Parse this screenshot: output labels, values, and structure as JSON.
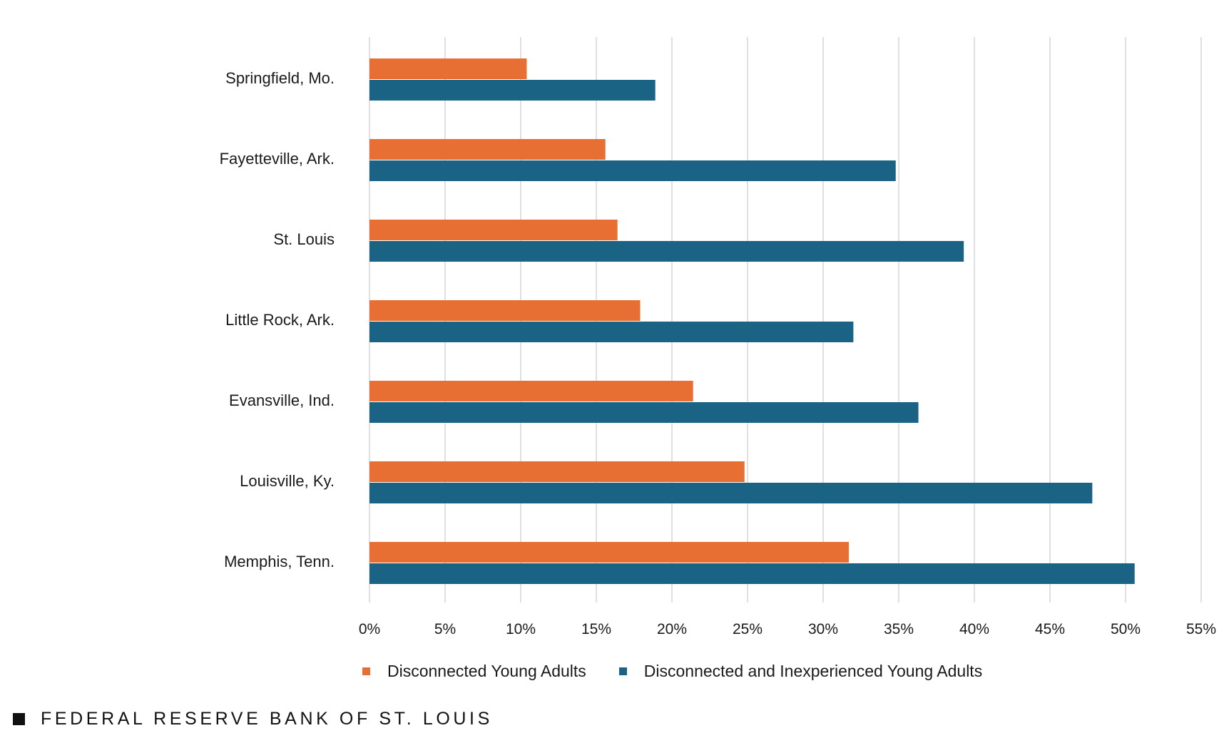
{
  "chart_data": {
    "type": "bar",
    "orientation": "horizontal",
    "categories": [
      "Springfield, Mo.",
      "Fayetteville, Ark.",
      "St. Louis",
      "Little Rock, Ark.",
      "Evansville, Ind.",
      "Louisville, Ky.",
      "Memphis, Tenn."
    ],
    "series": [
      {
        "name": "Disconnected Young Adults",
        "color": "#e86f33",
        "values": [
          10.4,
          15.6,
          16.4,
          17.9,
          21.4,
          24.8,
          31.7
        ]
      },
      {
        "name": "Disconnected and Inexperienced Young Adults",
        "color": "#1b6385",
        "values": [
          18.9,
          34.8,
          39.3,
          32.0,
          36.3,
          47.8,
          50.6
        ]
      }
    ],
    "xlim": [
      0,
      55
    ],
    "ticks": [
      0,
      5,
      10,
      15,
      20,
      25,
      30,
      35,
      40,
      45,
      50,
      55
    ],
    "tick_labels": [
      "0%",
      "5%",
      "10%",
      "15%",
      "20%",
      "25%",
      "30%",
      "35%",
      "40%",
      "45%",
      "50%",
      "55%"
    ],
    "grid": true,
    "legend_position": "bottom"
  },
  "footer": {
    "source": "FEDERAL RESERVE BANK OF ST. LOUIS"
  }
}
